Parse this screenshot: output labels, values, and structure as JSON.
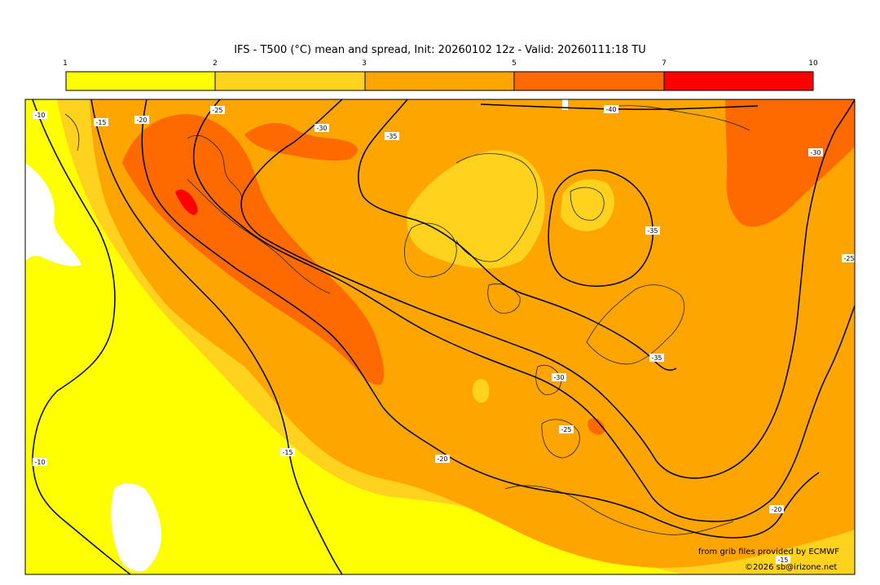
{
  "title": "IFS - T500 (°C) mean and spread, Init: 20260102 12z - Valid: 20260111:18 TU",
  "legend": {
    "ticks": [
      "1",
      "2",
      "3",
      "5",
      "7",
      "10"
    ],
    "colors": [
      "#ffff00",
      "#ffd21e",
      "#ffa500",
      "#ff6a00",
      "#ff0000"
    ]
  },
  "map": {
    "land_white": "#ffffff",
    "contour_labels": [
      {
        "name": "label-m10-west",
        "text": "-10"
      },
      {
        "name": "label-m15-west",
        "text": "-15"
      },
      {
        "name": "label-m20-west",
        "text": "-20"
      },
      {
        "name": "label-m25-west",
        "text": "-25"
      },
      {
        "name": "label-m30-north",
        "text": "-30"
      },
      {
        "name": "label-m35-north",
        "text": "-35"
      },
      {
        "name": "label-m40-north",
        "text": "-40"
      },
      {
        "name": "label-m35-east",
        "text": "-35"
      },
      {
        "name": "label-m35-scand",
        "text": "-35"
      },
      {
        "name": "label-m30-eurasia",
        "text": "-30"
      },
      {
        "name": "label-m25-east",
        "text": "-25"
      },
      {
        "name": "label-m30-europe",
        "text": "-30"
      },
      {
        "name": "label-m25-europe",
        "text": "-25"
      },
      {
        "name": "label-m20-atlantic",
        "text": "-20"
      },
      {
        "name": "label-m15-atlantic",
        "text": "-15"
      },
      {
        "name": "label-m10-southwest",
        "text": "-10"
      },
      {
        "name": "label-m20-southeast",
        "text": "-20"
      },
      {
        "name": "label-m15-southeast",
        "text": "-15"
      }
    ]
  },
  "credits": {
    "source": "from grib files provided by ECMWF",
    "copyright": "©2026 sb@irizone.net"
  }
}
